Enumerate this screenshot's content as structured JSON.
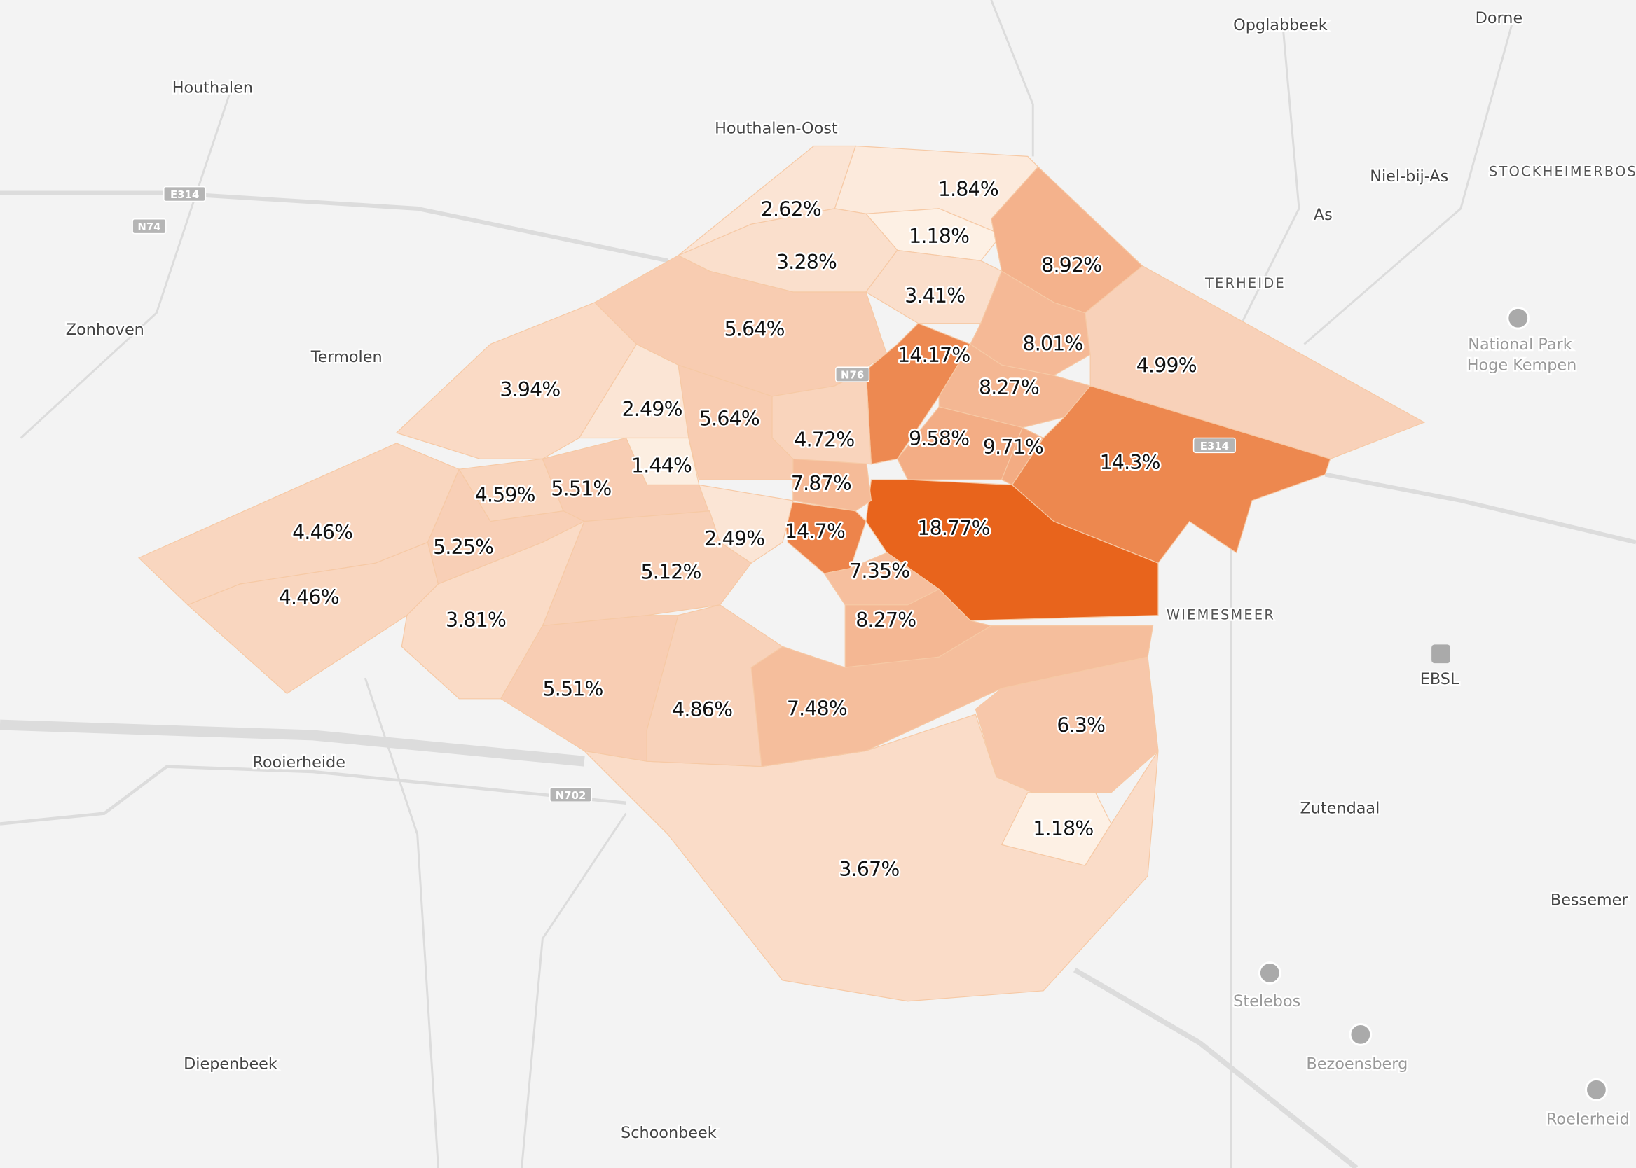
{
  "map": {
    "colors": {
      "background": "#f3f3f3",
      "low": "#fdf1e6",
      "high": "#e8641c",
      "road": "#dcdcdc"
    },
    "places": [
      {
        "name": "Opglabbeek",
        "style": "normal"
      },
      {
        "name": "Dorne",
        "style": "normal"
      },
      {
        "name": "Houthalen",
        "style": "normal"
      },
      {
        "name": "Houthalen-Oost",
        "style": "normal"
      },
      {
        "name": "Niel-bij-As",
        "style": "normal"
      },
      {
        "name": "STOCKHEIMERBOSC",
        "style": "caps"
      },
      {
        "name": "As",
        "style": "normal"
      },
      {
        "name": "TERHEIDE",
        "style": "caps"
      },
      {
        "name": "Zonhoven",
        "style": "normal"
      },
      {
        "name": "Termolen",
        "style": "normal"
      },
      {
        "name": "National Park",
        "style": "poi"
      },
      {
        "name": "Hoge Kempen",
        "style": "poi"
      },
      {
        "name": "WIEMESMEER",
        "style": "caps"
      },
      {
        "name": "EBSL",
        "style": "normal"
      },
      {
        "name": "Rooierheide",
        "style": "normal"
      },
      {
        "name": "Zutendaal",
        "style": "normal"
      },
      {
        "name": "Bessemer",
        "style": "normal"
      },
      {
        "name": "Stelebos",
        "style": "poi"
      },
      {
        "name": "Bezoensberg",
        "style": "poi"
      },
      {
        "name": "Roelerheid",
        "style": "poi"
      },
      {
        "name": "Diepenbeek",
        "style": "normal"
      },
      {
        "name": "Schoonbeek",
        "style": "normal"
      }
    ],
    "road_shields": [
      "E314",
      "N74",
      "N76",
      "E314",
      "N702"
    ],
    "regions": [
      {
        "label": "3.67%",
        "value": 3.67
      },
      {
        "label": "1.84%",
        "value": 1.84
      },
      {
        "label": "2.62%",
        "value": 2.62
      },
      {
        "label": "1.18%",
        "value": 1.18
      },
      {
        "label": "3.28%",
        "value": 3.28
      },
      {
        "label": "3.41%",
        "value": 3.41
      },
      {
        "label": "8.92%",
        "value": 8.92
      },
      {
        "label": "5.64%",
        "value": 5.64
      },
      {
        "label": "14.17%",
        "value": 14.17
      },
      {
        "label": "8.01%",
        "value": 8.01
      },
      {
        "label": "4.99%",
        "value": 4.99
      },
      {
        "label": "8.27%",
        "value": 8.27
      },
      {
        "label": "14.3%",
        "value": 14.3
      },
      {
        "label": "9.58%",
        "value": 9.58
      },
      {
        "label": "9.71%",
        "value": 9.71
      },
      {
        "label": "18.77%",
        "value": 18.77
      },
      {
        "label": "7.87%",
        "value": 7.87
      },
      {
        "label": "14.7%",
        "value": 14.7
      },
      {
        "label": "4.72%",
        "value": 4.72
      },
      {
        "label": "5.64%",
        "value": 5.64
      },
      {
        "label": "2.49%",
        "value": 2.49
      },
      {
        "label": "1.44%",
        "value": 1.44
      },
      {
        "label": "3.94%",
        "value": 3.94
      },
      {
        "label": "4.59%",
        "value": 4.59
      },
      {
        "label": "5.51%",
        "value": 5.51
      },
      {
        "label": "2.49%",
        "value": 2.49
      },
      {
        "label": "5.12%",
        "value": 5.12
      },
      {
        "label": "7.35%",
        "value": 7.35
      },
      {
        "label": "8.27%",
        "value": 8.27
      },
      {
        "label": "4.46%",
        "value": 4.46
      },
      {
        "label": "4.46%",
        "value": 4.46
      },
      {
        "label": "5.25%",
        "value": 5.25
      },
      {
        "label": "3.81%",
        "value": 3.81
      },
      {
        "label": "5.51%",
        "value": 5.51
      },
      {
        "label": "4.86%",
        "value": 4.86
      },
      {
        "label": "7.48%",
        "value": 7.48
      },
      {
        "label": "6.3%",
        "value": 6.3
      },
      {
        "label": "1.18%",
        "value": 1.18
      }
    ]
  }
}
